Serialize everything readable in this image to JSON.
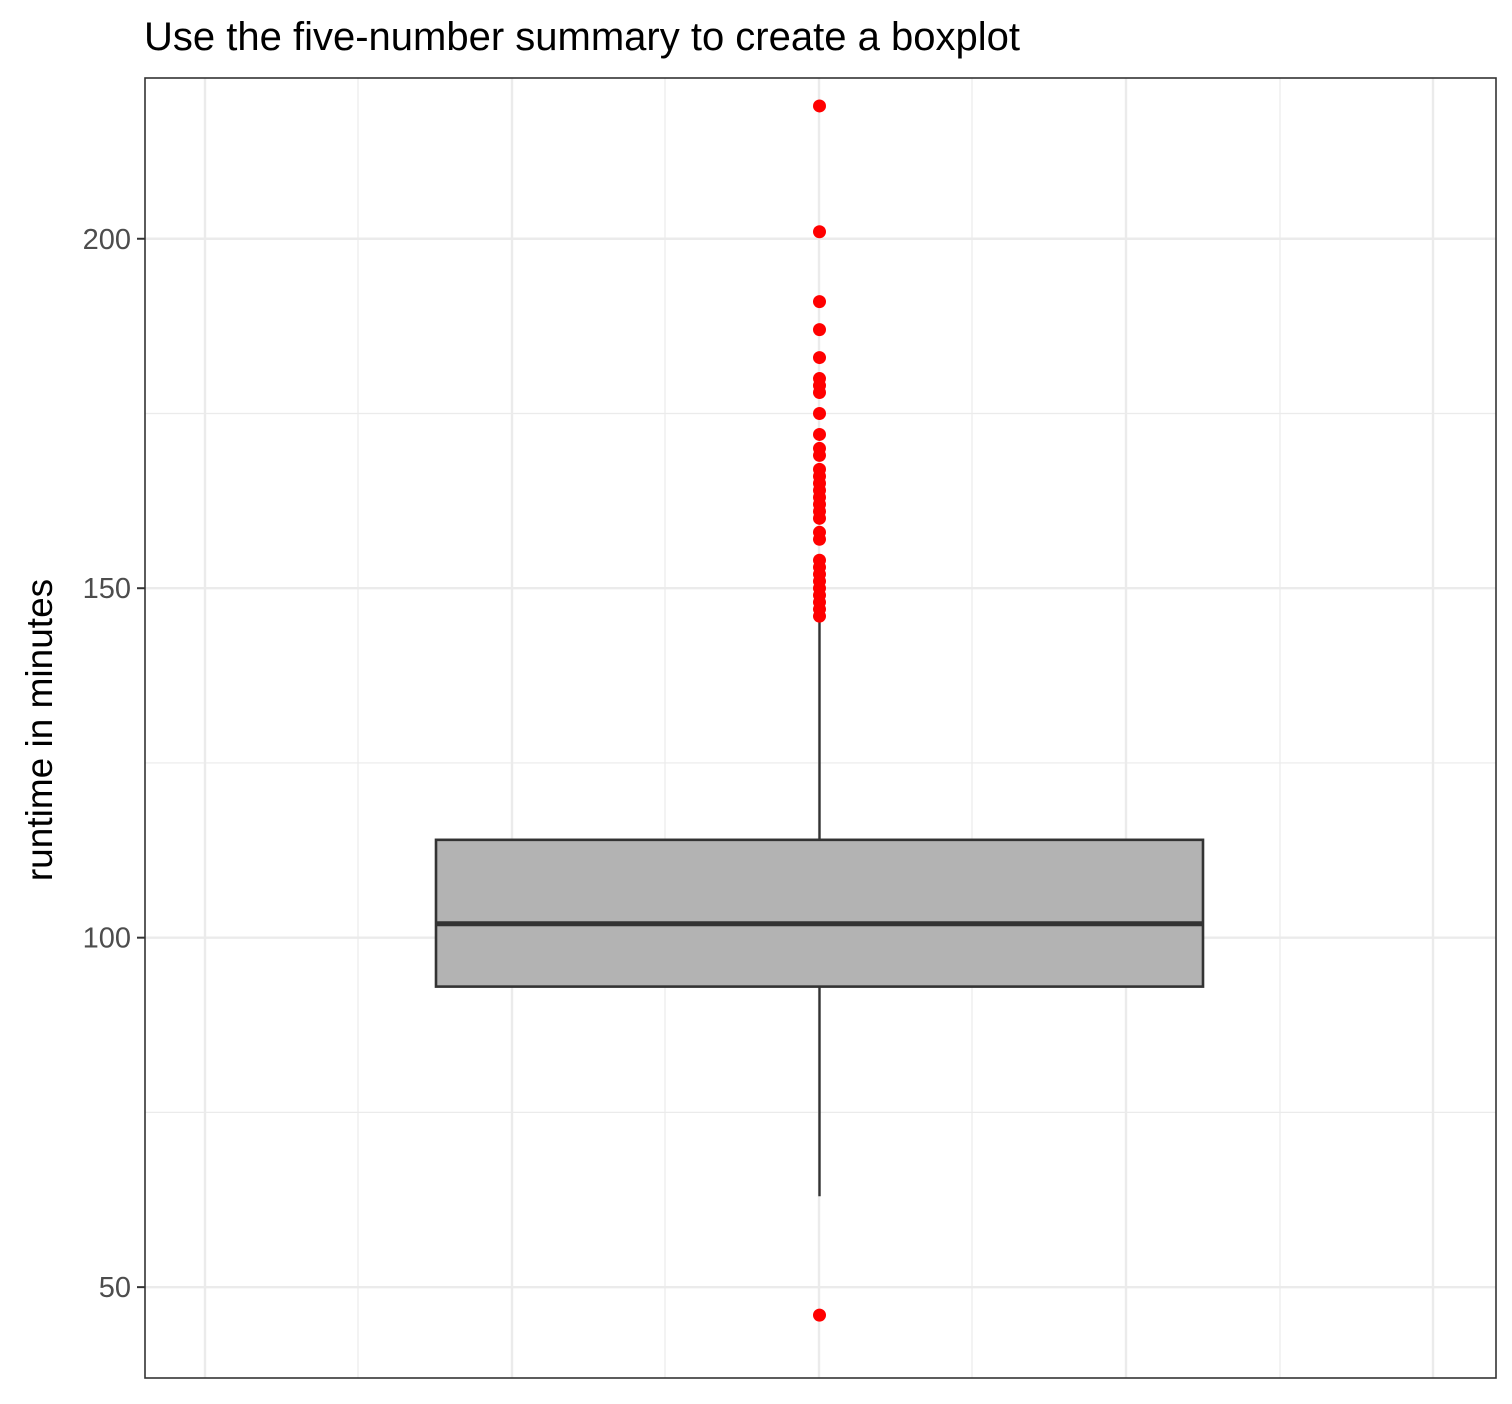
{
  "chart_data": {
    "type": "boxplot",
    "title": "Use the five-number summary to create a boxplot",
    "xlabel": "",
    "ylabel": "runtime in minutes",
    "ylim": [
      37,
      223
    ],
    "yticks": [
      50,
      100,
      150,
      200
    ],
    "grid": true,
    "legend": "none",
    "summary": {
      "lower_whisker": 63,
      "q1": 93,
      "median": 102,
      "q3": 114,
      "upper_whisker": 146
    },
    "outliers": [
      46,
      146,
      147,
      148,
      149,
      150,
      151,
      152,
      153,
      154,
      157,
      158,
      160,
      161,
      162,
      163,
      164,
      165,
      166,
      167,
      169,
      170,
      172,
      175,
      178,
      179,
      180,
      183,
      187,
      191,
      201,
      219
    ],
    "colors": {
      "box_fill": "#b3b3b3",
      "box_line": "#333333",
      "outlier": "#ff0000",
      "grid": "#ebebeb",
      "panel_border": "#333333"
    }
  }
}
